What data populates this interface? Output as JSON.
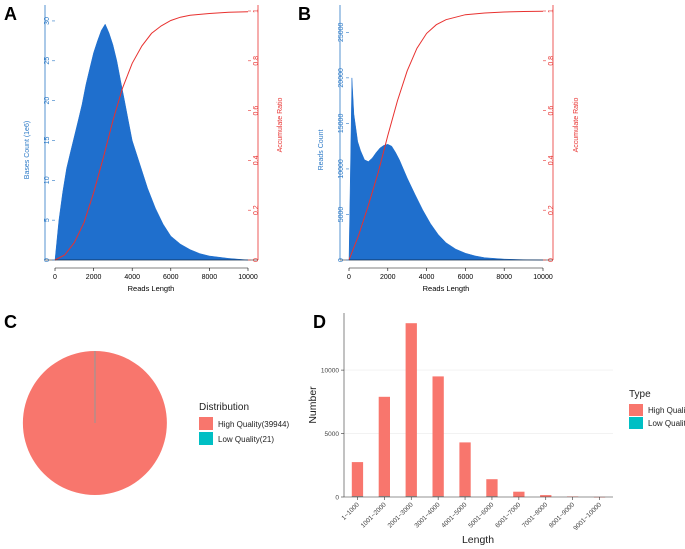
{
  "chart_data": [
    {
      "panel": "A",
      "type": "area",
      "xlabel": "Reads Length",
      "ylabel": "Bases Count (1e6)",
      "y2label": "Accumulate Ratio",
      "xlim": [
        0,
        10000
      ],
      "ylim": [
        0,
        32
      ],
      "y2lim": [
        0,
        1
      ],
      "xticks": [
        "0",
        "2000",
        "4000",
        "6000",
        "8000",
        "10000"
      ],
      "yticks": [
        "0",
        "5",
        "10",
        "15",
        "20",
        "25",
        "30"
      ],
      "y2ticks": [
        "0",
        "0.2",
        "0.4",
        "0.6",
        "0.8",
        "1"
      ],
      "colors": {
        "area": "#1f6fcd",
        "curve": "#e8312f"
      },
      "histogram": {
        "x": [
          0,
          200,
          400,
          600,
          800,
          1000,
          1200,
          1400,
          1600,
          1800,
          2000,
          2200,
          2400,
          2600,
          2800,
          3000,
          3200,
          3400,
          3600,
          3800,
          4000,
          4400,
          4800,
          5200,
          5600,
          6000,
          6500,
          7000,
          7500,
          8000,
          9000,
          10000
        ],
        "y": [
          0,
          5,
          8.5,
          11.5,
          13.5,
          15.5,
          17.5,
          19.5,
          22,
          24,
          26,
          27.5,
          28.8,
          29.6,
          28.5,
          27,
          25,
          22.5,
          20,
          17.5,
          15,
          12,
          9,
          6.5,
          4.5,
          3,
          2,
          1.3,
          0.8,
          0.5,
          0.2,
          0
        ]
      },
      "cumulative": {
        "x": [
          0,
          500,
          1000,
          1500,
          2000,
          2500,
          3000,
          3500,
          4000,
          4500,
          5000,
          5500,
          6000,
          6500,
          7000,
          8000,
          9000,
          10000
        ],
        "y": [
          0,
          0.02,
          0.07,
          0.15,
          0.27,
          0.41,
          0.56,
          0.69,
          0.79,
          0.86,
          0.91,
          0.94,
          0.962,
          0.975,
          0.983,
          0.99,
          0.995,
          0.997
        ]
      }
    },
    {
      "panel": "B",
      "type": "area",
      "xlabel": "Reads Length",
      "ylabel": "Reads Count",
      "y2label": "Accumulate Ratio",
      "xlim": [
        0,
        10000
      ],
      "ylim": [
        0,
        28000
      ],
      "y2lim": [
        0,
        1
      ],
      "xticks": [
        "0",
        "2000",
        "4000",
        "6000",
        "8000",
        "10000"
      ],
      "yticks": [
        "0",
        "5000",
        "10000",
        "15000",
        "20000",
        "25000"
      ],
      "y2ticks": [
        "0",
        "0.2",
        "0.4",
        "0.6",
        "0.8",
        "1"
      ],
      "colors": {
        "area": "#1f6fcd",
        "curve": "#e8312f"
      },
      "histogram": {
        "x": [
          0,
          150,
          250,
          350,
          450,
          600,
          800,
          1000,
          1200,
          1400,
          1600,
          1800,
          2000,
          2200,
          2400,
          2600,
          2800,
          3000,
          3400,
          3800,
          4200,
          4600,
          5000,
          5500,
          6000,
          6500,
          7000,
          8000,
          9000,
          10000
        ],
        "y": [
          0,
          20000,
          16000,
          14500,
          13000,
          12000,
          11000,
          10800,
          11200,
          11800,
          12300,
          12600,
          12700,
          12500,
          11800,
          11000,
          10000,
          9000,
          7200,
          5500,
          4000,
          2800,
          1900,
          1200,
          750,
          450,
          250,
          100,
          30,
          0
        ]
      },
      "cumulative": {
        "x": [
          0,
          500,
          1000,
          1500,
          2000,
          2500,
          3000,
          3500,
          4000,
          4500,
          5000,
          6000,
          7000,
          8000,
          9000,
          10000
        ],
        "y": [
          0,
          0.1,
          0.22,
          0.35,
          0.5,
          0.64,
          0.76,
          0.85,
          0.91,
          0.945,
          0.965,
          0.985,
          0.992,
          0.996,
          0.998,
          0.999
        ]
      }
    },
    {
      "panel": "C",
      "type": "pie",
      "legend_title": "Distribution",
      "labels": [
        "High Quality(39944)",
        "Low Quality(21)"
      ],
      "values": [
        39944,
        21
      ],
      "colors": [
        "#f8766d",
        "#00bfc4"
      ]
    },
    {
      "panel": "D",
      "type": "bar",
      "xlabel": "Length",
      "ylabel": "Number",
      "legend_title": "Type",
      "legend": [
        "High Quality",
        "Low Quality"
      ],
      "colors": [
        "#f8766d",
        "#00bfc4"
      ],
      "ylim": [
        0,
        14500
      ],
      "yticks": [
        "0",
        "5000",
        "10000"
      ],
      "categories": [
        "1~1000",
        "1001~2000",
        "2001~3000",
        "3001~4000",
        "4001~5000",
        "5001~6000",
        "6001~7000",
        "7001~8000",
        "8001~9000",
        "9001~10000"
      ],
      "series": [
        {
          "name": "High Quality",
          "values": [
            2750,
            7900,
            13700,
            9500,
            4300,
            1400,
            420,
            150,
            40,
            10
          ]
        },
        {
          "name": "Low Quality",
          "values": [
            5,
            6,
            4,
            3,
            2,
            1,
            0,
            0,
            0,
            0
          ]
        }
      ]
    }
  ]
}
